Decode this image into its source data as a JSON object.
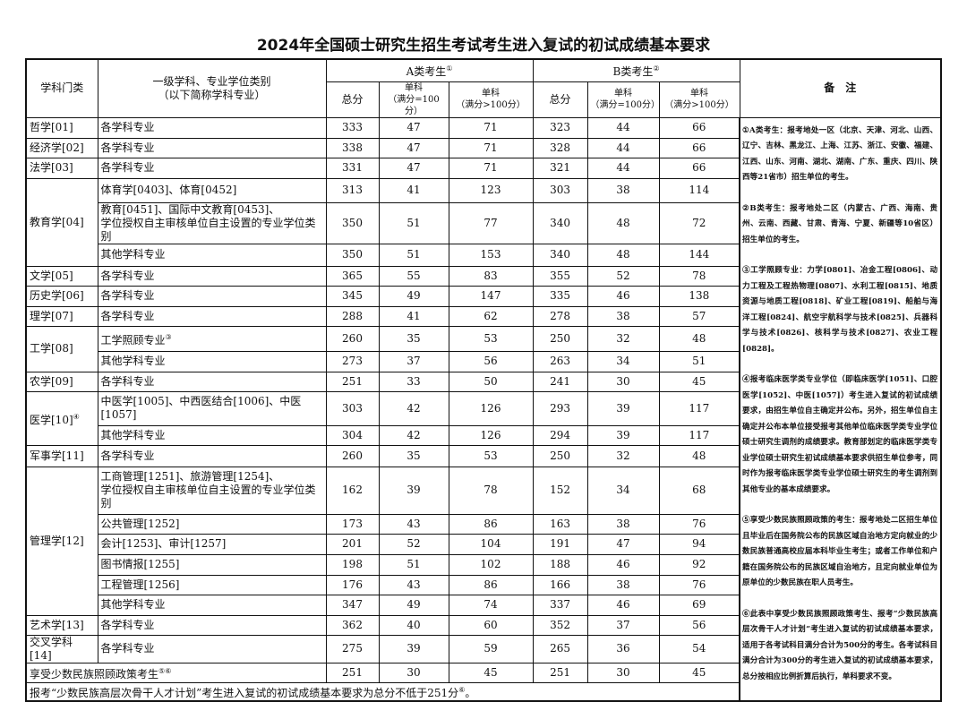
{
  "title": "2024年全国硕士研究生招生考试考生进入复试的初试成绩基本要求",
  "header": {
    "category": "学科门类",
    "discipline": "一级学科、专业学位类别",
    "discipline_sub": "（以下简称学科专业）",
    "group_a": "A类考生",
    "group_a_mark": "①",
    "group_b": "B类考生",
    "group_b_mark": "②",
    "total": "总分",
    "single": "单科",
    "full100": "（满分=100分）",
    "full_gt100": "（满分>100分）",
    "notes": "备　注"
  },
  "groups": [
    {
      "category": "哲学[01]",
      "rows": [
        {
          "major": "各学科专业",
          "v": [
            "333",
            "47",
            "71",
            "323",
            "44",
            "66"
          ]
        }
      ]
    },
    {
      "category": "经济学[02]",
      "rows": [
        {
          "major": "各学科专业",
          "v": [
            "338",
            "47",
            "71",
            "328",
            "44",
            "66"
          ]
        }
      ]
    },
    {
      "category": "法学[03]",
      "rows": [
        {
          "major": "各学科专业",
          "v": [
            "331",
            "47",
            "71",
            "321",
            "44",
            "66"
          ]
        }
      ]
    },
    {
      "category": "教育学[04]",
      "rows": [
        {
          "major": "体育学[0403]、体育[0452]",
          "v": [
            "313",
            "41",
            "123",
            "303",
            "38",
            "114"
          ]
        },
        {
          "major": "教育[0451]、国际中文教育[0453]、",
          "major2": "学位授权自主审核单位自主设置的专业学位类别",
          "v": [
            "350",
            "51",
            "77",
            "340",
            "48",
            "72"
          ]
        },
        {
          "major": "其他学科专业",
          "v": [
            "350",
            "51",
            "153",
            "340",
            "48",
            "144"
          ]
        }
      ]
    },
    {
      "category": "文学[05]",
      "rows": [
        {
          "major": "各学科专业",
          "v": [
            "365",
            "55",
            "83",
            "355",
            "52",
            "78"
          ]
        }
      ]
    },
    {
      "category": "历史学[06]",
      "rows": [
        {
          "major": "各学科专业",
          "v": [
            "345",
            "49",
            "147",
            "335",
            "46",
            "138"
          ]
        }
      ]
    },
    {
      "category": "理学[07]",
      "rows": [
        {
          "major": "各学科专业",
          "v": [
            "288",
            "41",
            "62",
            "278",
            "38",
            "57"
          ]
        }
      ]
    },
    {
      "category": "工学[08]",
      "rows": [
        {
          "major": "工学照顾专业",
          "mark": "③",
          "v": [
            "260",
            "35",
            "53",
            "250",
            "32",
            "48"
          ]
        },
        {
          "major": "其他学科专业",
          "v": [
            "273",
            "37",
            "56",
            "263",
            "34",
            "51"
          ]
        }
      ]
    },
    {
      "category": "农学[09]",
      "rows": [
        {
          "major": "各学科专业",
          "v": [
            "251",
            "33",
            "50",
            "241",
            "30",
            "45"
          ]
        }
      ]
    },
    {
      "category": "医学[10]",
      "mark": "④",
      "rows": [
        {
          "major": "中医学[1005]、中西医结合[1006]、中医[1057]",
          "v": [
            "303",
            "42",
            "126",
            "293",
            "39",
            "117"
          ]
        },
        {
          "major": "其他学科专业",
          "v": [
            "304",
            "42",
            "126",
            "294",
            "39",
            "117"
          ]
        }
      ]
    },
    {
      "category": "军事学[11]",
      "rows": [
        {
          "major": "各学科专业",
          "v": [
            "260",
            "35",
            "53",
            "250",
            "32",
            "48"
          ]
        }
      ]
    },
    {
      "category": "管理学[12]",
      "rows": [
        {
          "major": "工商管理[1251]、旅游管理[1254]、",
          "major2": "学位授权自主审核单位自主设置的专业学位类别",
          "v": [
            "162",
            "39",
            "78",
            "152",
            "34",
            "68"
          ]
        },
        {
          "major": "公共管理[1252]",
          "v": [
            "173",
            "43",
            "86",
            "163",
            "38",
            "76"
          ]
        },
        {
          "major": "会计[1253]、审计[1257]",
          "v": [
            "201",
            "52",
            "104",
            "191",
            "47",
            "94"
          ]
        },
        {
          "major": "图书情报[1255]",
          "v": [
            "198",
            "51",
            "102",
            "188",
            "46",
            "92"
          ]
        },
        {
          "major": "工程管理[1256]",
          "v": [
            "176",
            "43",
            "86",
            "166",
            "38",
            "76"
          ]
        },
        {
          "major": "其他学科专业",
          "v": [
            "347",
            "49",
            "74",
            "337",
            "46",
            "69"
          ]
        }
      ]
    },
    {
      "category": "艺术学[13]",
      "rows": [
        {
          "major": "各学科专业",
          "v": [
            "362",
            "40",
            "60",
            "352",
            "37",
            "56"
          ]
        }
      ]
    },
    {
      "category": "交叉学科[14]",
      "rows": [
        {
          "major": "各学科专业",
          "v": [
            "275",
            "39",
            "59",
            "265",
            "36",
            "54"
          ]
        }
      ]
    }
  ],
  "minority_row": {
    "label": "享受少数民族照顾政策考生",
    "mark": "⑤⑥",
    "v": [
      "251",
      "30",
      "45",
      "251",
      "30",
      "45"
    ]
  },
  "footer": {
    "text": "报考“少数民族高层次骨干人才计划”考生进入复试的初试成绩基本要求为总分不低于251分",
    "mark": "⑥",
    "end": "。"
  },
  "notes": [
    "①A类考生：报考地处一区（北京、天津、河北、山西、辽宁、吉林、黑龙江、上海、江苏、浙江、安徽、福建、江西、山东、河南、湖北、湖南、广东、重庆、四川、陕西等21省市）招生单位的考生。",
    "②B类考生：报考地处二区（内蒙古、广西、海南、贵州、云南、西藏、甘肃、青海、宁夏、新疆等10省区）招生单位的考生。",
    "③工学照顾专业：力学[0801]、冶金工程[0806]、动力工程及工程热物理[0807]、水利工程[0815]、地质资源与地质工程[0818]、矿业工程[0819]、船舶与海洋工程[0824]、航空宇航科学与技术[0825]、兵器科学与技术[0826]、核科学与技术[0827]、农业工程[0828]。",
    "④报考临床医学类专业学位（即临床医学[1051]、口腔医学[1052]、中医[1057]）考生进入复试的初试成绩要求，由招生单位自主确定并公布。另外，招生单位自主确定并公布本单位接受报考其他单位临床医学类专业学位硕士研究生调剂的成绩要求。教育部划定的临床医学类专业学位硕士研究生初试成绩基本要求供招生单位参考，同时作为报考临床医学类专业学位硕士研究生的考生调剂到其他专业的基本成绩要求。",
    "⑤享受少数民族照顾政策的考生：报考地处二区招生单位且毕业后在国务院公布的民族区域自治地方定向就业的少数民族普通高校应届本科毕业生考生；或者工作单位和户籍在国务院公布的民族区域自治地方，且定向就业单位为原单位的少数民族在职人员考生。",
    "⑥此表中享受少数民族照顾政策考生、报考“少数民族高层次骨干人才计划”考生进入复试的初试成绩基本要求，适用于各考试科目满分合计为500分的考生。各考试科目满分合计为300分的考生进入复试的初试成绩基本要求，总分按相应比例折算后执行，单科要求不变。"
  ]
}
